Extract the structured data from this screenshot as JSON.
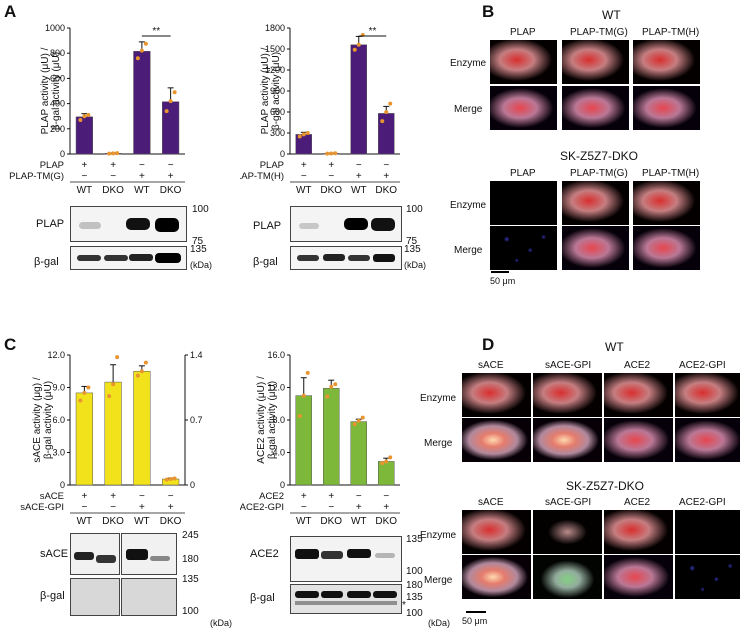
{
  "panels": {
    "A": {
      "letter": "A",
      "chart1": {
        "ylabel": "PLAP activity (μU) / β-gal activity (μU)",
        "yticks": [
          "0",
          "200",
          "400",
          "600",
          "800",
          "1000"
        ],
        "sig": "**",
        "row1_label": "PLAP",
        "row2_label": "PLAP-TM(G)",
        "row1_signs": [
          "+",
          "+",
          "−",
          "−"
        ],
        "row2_signs": [
          "−",
          "−",
          "+",
          "+"
        ],
        "groups": [
          "WT",
          "DKO",
          "WT",
          "DKO"
        ]
      },
      "chart2": {
        "ylabel": "PLAP activity (μU) / β-gal activity (μU)",
        "yticks": [
          "0",
          "300",
          "600",
          "900",
          "1200",
          "1500",
          "1800"
        ],
        "sig": "**",
        "row1_label": "PLAP",
        "row2_label": "PLAP-TM(H)",
        "row1_signs": [
          "+",
          "+",
          "−",
          "−"
        ],
        "row2_signs": [
          "−",
          "−",
          "+",
          "+"
        ],
        "groups": [
          "WT",
          "DKO",
          "WT",
          "DKO"
        ]
      },
      "blot1": {
        "label_top": "PLAP",
        "label_bottom": "β-gal",
        "mw_100": "100",
        "mw_75": "75",
        "mw_135": "135",
        "kda": "(kDa)"
      },
      "blot2": {
        "label_top": "PLAP",
        "label_bottom": "β-gal",
        "mw_100": "100",
        "mw_75": "75",
        "mw_135": "135",
        "kda": "(kDa)"
      }
    },
    "B": {
      "letter": "B",
      "wt_title": "WT",
      "dko_title": "SK-Z5Z7-DKO",
      "cols": [
        "PLAP",
        "PLAP-TM(G)",
        "PLAP-TM(H)"
      ],
      "rows": [
        "Enzyme",
        "Merge"
      ],
      "scale": "50 μm"
    },
    "C": {
      "letter": "C",
      "chart1": {
        "ylabel": "sACE activity (μg) / β-gal activity (μU)",
        "yticks_left": [
          "0",
          "3.0",
          "6.0",
          "9.0",
          "12.0"
        ],
        "yticks_right": [
          "0",
          "0.7",
          "1.4"
        ],
        "row1_label": "sACE",
        "row2_label": "sACE-GPI",
        "row1_signs": [
          "+",
          "+",
          "−",
          "−"
        ],
        "row2_signs": [
          "−",
          "−",
          "+",
          "+"
        ],
        "groups": [
          "WT",
          "DKO",
          "WT",
          "DKO"
        ]
      },
      "chart2": {
        "ylabel": "ACE2 activity (μU) / β-gal activity (μU)",
        "yticks": [
          "0",
          "4.0",
          "8.0",
          "12.0",
          "16.0"
        ],
        "row1_label": "ACE2",
        "row2_label": "ACE2-GPI",
        "row1_signs": [
          "+",
          "+",
          "−",
          "−"
        ],
        "row2_signs": [
          "−",
          "−",
          "+",
          "+"
        ],
        "groups": [
          "WT",
          "DKO",
          "WT",
          "DKO"
        ]
      },
      "blot1": {
        "label_top": "sACE",
        "label_bottom": "β-gal",
        "mw_245": "245",
        "mw_180": "180",
        "mw_135": "135",
        "mw_100": "100",
        "kda": "(kDa)"
      },
      "blot2": {
        "label_top": "ACE2",
        "label_bottom": "β-gal",
        "mw_135a": "135",
        "mw_100a": "100",
        "mw_180": "180",
        "mw_135b": "135",
        "mw_100b": "100",
        "star": "*",
        "kda": "(kDa)"
      }
    },
    "D": {
      "letter": "D",
      "wt_title": "WT",
      "dko_title": "SK-Z5Z7-DKO",
      "cols": [
        "sACE",
        "sACE-GPI",
        "ACE2",
        "ACE2-GPI"
      ],
      "rows": [
        "Enzyme",
        "Merge"
      ],
      "scale": "50 μm"
    }
  },
  "chart_data": [
    {
      "type": "bar",
      "id": "A1",
      "ylim": [
        0,
        1000
      ],
      "categories": [
        "WT",
        "DKO",
        "WT",
        "DKO"
      ],
      "values": [
        295,
        5,
        815,
        415
      ],
      "errors": [
        25,
        3,
        75,
        110
      ],
      "points": [
        [
          270,
          300,
          310
        ],
        [
          3,
          5,
          7
        ],
        [
          760,
          820,
          875
        ],
        [
          340,
          420,
          490
        ]
      ],
      "colors": {
        "bar": "#4b1c78",
        "point": "#e8952f"
      }
    },
    {
      "type": "bar",
      "id": "A2",
      "ylim": [
        0,
        1800
      ],
      "categories": [
        "WT",
        "DKO",
        "WT",
        "DKO"
      ],
      "values": [
        280,
        8,
        1560,
        580
      ],
      "errors": [
        30,
        3,
        120,
        100
      ],
      "points": [
        [
          250,
          280,
          300
        ],
        [
          5,
          8,
          10
        ],
        [
          1490,
          1560,
          1700
        ],
        [
          470,
          600,
          720
        ]
      ],
      "colors": {
        "bar": "#4b1c78",
        "point": "#e8952f"
      }
    },
    {
      "type": "bar",
      "id": "C1",
      "ylim": [
        0,
        12.0
      ],
      "ylim_right": [
        0,
        1.4
      ],
      "categories": [
        "WT",
        "DKO",
        "WT",
        "DKO"
      ],
      "values": [
        8.5,
        9.5,
        10.5,
        0.55
      ],
      "errors": [
        0.6,
        1.6,
        0.5,
        0.08
      ],
      "points": [
        [
          7.8,
          8.5,
          9.0
        ],
        [
          8.2,
          9.3,
          11.8
        ],
        [
          10.1,
          10.5,
          11.3
        ],
        [
          0.5,
          0.55,
          0.6
        ]
      ],
      "colors": {
        "bar": "#f2e21c",
        "point": "#e8952f"
      }
    },
    {
      "type": "bar",
      "id": "C2",
      "ylim": [
        0,
        16.0
      ],
      "categories": [
        "WT",
        "DKO",
        "WT",
        "DKO"
      ],
      "values": [
        11.0,
        11.9,
        7.8,
        2.9
      ],
      "errors": [
        2.2,
        1.0,
        0.3,
        0.4
      ],
      "points": [
        [
          8.5,
          11.0,
          13.8
        ],
        [
          10.9,
          12.1,
          12.4
        ],
        [
          7.5,
          7.9,
          8.3
        ],
        [
          2.7,
          2.9,
          3.4
        ]
      ],
      "colors": {
        "bar": "#7db83a",
        "point": "#e8952f"
      }
    }
  ]
}
